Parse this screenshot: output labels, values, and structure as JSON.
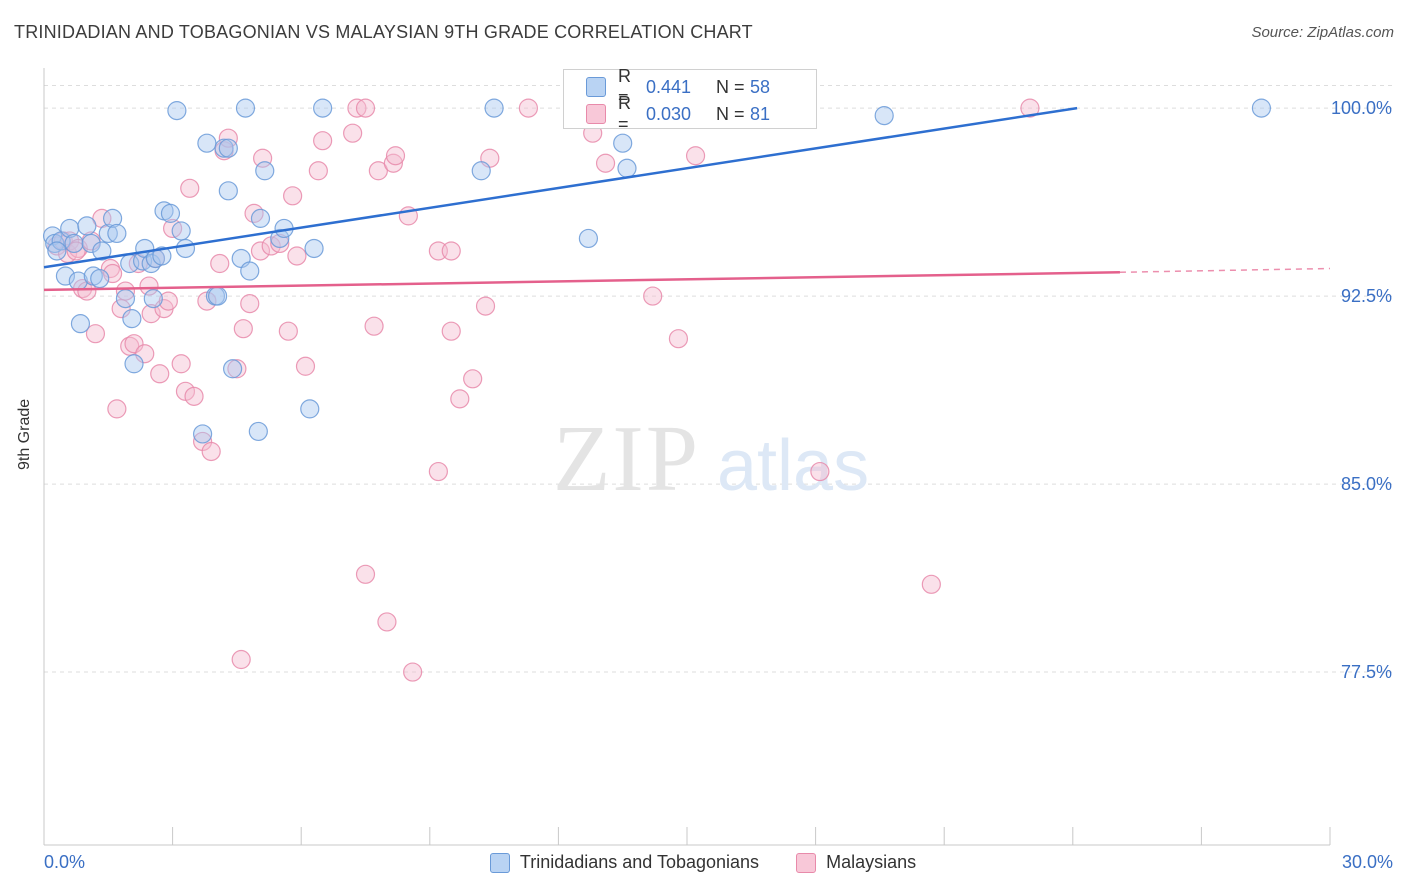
{
  "title": "TRINIDADIAN AND TOBAGONIAN VS MALAYSIAN 9TH GRADE CORRELATION CHART",
  "source": "Source: ZipAtlas.com",
  "watermark": {
    "zip": "ZIP",
    "atlas": "atlas"
  },
  "stats": [
    {
      "r_label": "R =",
      "r_value": "0.441",
      "n_label": "N =",
      "n_value": "58"
    },
    {
      "r_label": "R =",
      "r_value": "0.030",
      "n_label": "N =",
      "n_value": "81"
    }
  ],
  "colors": {
    "blue_fill": "#a9c8ef",
    "blue_stroke": "#6a9ad8",
    "blue_line": "#2e6fd0",
    "pink_fill": "#f4bcd0",
    "pink_stroke": "#e88aaa",
    "pink_line": "#e4608c",
    "tick_text": "#3a6fc4",
    "grid": "#dddddd"
  },
  "chart_data": {
    "type": "scatter",
    "title": "TRINIDADIAN AND TOBAGONIAN VS MALAYSIAN 9TH GRADE CORRELATION CHART",
    "xlabel": "",
    "ylabel": "9th Grade",
    "xlim": [
      0,
      30
    ],
    "ylim": [
      70.6,
      101.6
    ],
    "x_tick_labels": [
      "0.0%",
      "30.0%"
    ],
    "y_ticks": [
      77.5,
      85.0,
      92.5,
      100.0
    ],
    "y_tick_labels": [
      "77.5%",
      "85.0%",
      "92.5%",
      "100.0%"
    ],
    "grid": true,
    "legend_position": "bottom",
    "series": [
      {
        "name": "Trinidadians and Tobagonians",
        "color": "blue",
        "trend": {
          "x": [
            0,
            24.1
          ],
          "y": [
            93.65,
            100.0
          ],
          "dashed_to": null
        },
        "points": [
          [
            0.2,
            94.9
          ],
          [
            0.25,
            94.6
          ],
          [
            0.4,
            94.7
          ],
          [
            0.6,
            95.2
          ],
          [
            0.7,
            94.6
          ],
          [
            0.5,
            93.3
          ],
          [
            0.8,
            93.1
          ],
          [
            0.85,
            91.4
          ],
          [
            1.0,
            95.3
          ],
          [
            1.1,
            94.6
          ],
          [
            1.15,
            93.3
          ],
          [
            1.3,
            93.2
          ],
          [
            1.35,
            94.3
          ],
          [
            1.5,
            95.0
          ],
          [
            1.6,
            95.6
          ],
          [
            1.7,
            95.0
          ],
          [
            1.9,
            92.4
          ],
          [
            2.0,
            93.8
          ],
          [
            2.05,
            91.6
          ],
          [
            2.1,
            89.8
          ],
          [
            2.3,
            93.9
          ],
          [
            2.35,
            94.4
          ],
          [
            2.5,
            93.8
          ],
          [
            2.55,
            92.4
          ],
          [
            2.6,
            94.0
          ],
          [
            2.75,
            94.1
          ],
          [
            2.8,
            95.9
          ],
          [
            2.95,
            95.8
          ],
          [
            3.2,
            95.1
          ],
          [
            3.3,
            94.4
          ],
          [
            3.1,
            99.9
          ],
          [
            3.7,
            87.0
          ],
          [
            3.8,
            98.6
          ],
          [
            4.0,
            92.5
          ],
          [
            4.05,
            92.5
          ],
          [
            4.2,
            98.4
          ],
          [
            4.3,
            96.7
          ],
          [
            4.4,
            89.6
          ],
          [
            4.6,
            94.0
          ],
          [
            4.8,
            93.5
          ],
          [
            4.7,
            100.0
          ],
          [
            5.0,
            87.1
          ],
          [
            5.05,
            95.6
          ],
          [
            5.15,
            97.5
          ],
          [
            5.5,
            94.8
          ],
          [
            5.6,
            95.2
          ],
          [
            6.2,
            88.0
          ],
          [
            6.3,
            94.4
          ],
          [
            6.5,
            100.0
          ],
          [
            10.2,
            97.5
          ],
          [
            10.5,
            100.0
          ],
          [
            12.7,
            94.8
          ],
          [
            13.5,
            98.6
          ],
          [
            13.6,
            97.6
          ],
          [
            19.6,
            99.7
          ],
          [
            28.4,
            100.0
          ],
          [
            0.3,
            94.3
          ],
          [
            4.3,
            98.4
          ]
        ]
      },
      {
        "name": "Malaysians",
        "color": "pink",
        "trend": {
          "x": [
            0,
            25.1
          ],
          "y": [
            92.75,
            93.45
          ],
          "dashed_to": [
            30,
            93.6
          ]
        },
        "points": [
          [
            0.3,
            94.5
          ],
          [
            0.45,
            94.7
          ],
          [
            0.55,
            94.2
          ],
          [
            0.6,
            94.7
          ],
          [
            0.8,
            94.4
          ],
          [
            0.75,
            94.3
          ],
          [
            0.9,
            92.8
          ],
          [
            1.0,
            92.7
          ],
          [
            1.1,
            94.7
          ],
          [
            1.2,
            91.0
          ],
          [
            1.35,
            95.6
          ],
          [
            1.55,
            93.6
          ],
          [
            1.6,
            93.4
          ],
          [
            1.7,
            88.0
          ],
          [
            1.8,
            92.0
          ],
          [
            1.9,
            92.7
          ],
          [
            2.0,
            90.5
          ],
          [
            2.1,
            90.6
          ],
          [
            2.2,
            93.8
          ],
          [
            2.35,
            90.2
          ],
          [
            2.45,
            92.9
          ],
          [
            2.5,
            91.8
          ],
          [
            2.6,
            94.0
          ],
          [
            2.7,
            89.4
          ],
          [
            2.8,
            92.0
          ],
          [
            2.9,
            92.3
          ],
          [
            3.0,
            95.2
          ],
          [
            3.2,
            89.8
          ],
          [
            3.3,
            88.7
          ],
          [
            3.4,
            96.8
          ],
          [
            3.5,
            88.5
          ],
          [
            3.7,
            86.7
          ],
          [
            3.8,
            92.3
          ],
          [
            3.9,
            86.3
          ],
          [
            4.1,
            93.8
          ],
          [
            4.2,
            98.3
          ],
          [
            4.3,
            98.8
          ],
          [
            4.5,
            89.6
          ],
          [
            4.6,
            78.0
          ],
          [
            4.65,
            91.2
          ],
          [
            4.8,
            92.2
          ],
          [
            4.9,
            95.8
          ],
          [
            5.05,
            94.3
          ],
          [
            5.1,
            98.0
          ],
          [
            5.3,
            94.5
          ],
          [
            5.5,
            94.6
          ],
          [
            5.7,
            91.1
          ],
          [
            5.8,
            96.5
          ],
          [
            5.9,
            94.1
          ],
          [
            6.1,
            89.7
          ],
          [
            6.4,
            97.5
          ],
          [
            6.5,
            98.7
          ],
          [
            7.2,
            99.0
          ],
          [
            7.3,
            100.0
          ],
          [
            7.5,
            100.0
          ],
          [
            7.5,
            81.4
          ],
          [
            7.7,
            91.3
          ],
          [
            7.8,
            97.5
          ],
          [
            8.0,
            79.5
          ],
          [
            8.15,
            97.8
          ],
          [
            8.2,
            98.1
          ],
          [
            8.5,
            95.7
          ],
          [
            8.6,
            77.5
          ],
          [
            9.2,
            85.5
          ],
          [
            9.2,
            94.3
          ],
          [
            9.5,
            94.3
          ],
          [
            9.5,
            91.1
          ],
          [
            9.7,
            88.4
          ],
          [
            10.0,
            89.2
          ],
          [
            10.3,
            92.1
          ],
          [
            10.4,
            98.0
          ],
          [
            11.3,
            100.0
          ],
          [
            12.8,
            99.0
          ],
          [
            13.1,
            97.8
          ],
          [
            14.6,
            100.0
          ],
          [
            15.2,
            98.1
          ],
          [
            14.2,
            92.5
          ],
          [
            14.8,
            90.8
          ],
          [
            18.1,
            85.5
          ],
          [
            20.7,
            81.0
          ],
          [
            23.0,
            100.0
          ]
        ]
      }
    ]
  }
}
